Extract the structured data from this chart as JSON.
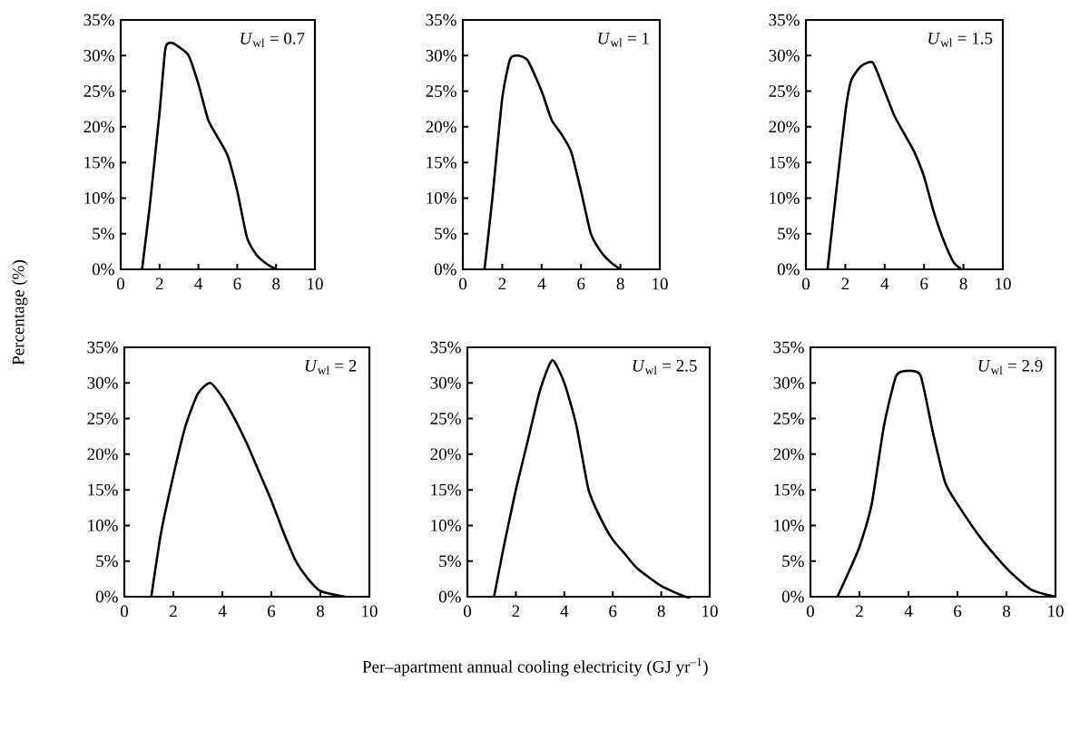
{
  "chart_data": [
    {
      "type": "line",
      "color": "#000000",
      "marker": "none",
      "line_style": "solid",
      "xlim": [
        0,
        10
      ],
      "ylim": [
        0,
        35
      ],
      "xticks": [
        0,
        2,
        4,
        6,
        8,
        10
      ],
      "yticks": [
        {
          "value": 0,
          "label": "0%"
        },
        {
          "value": 5,
          "label": "5%"
        },
        {
          "value": 10,
          "label": "10%"
        },
        {
          "value": 15,
          "label": "15%"
        },
        {
          "value": 20,
          "label": "20%"
        },
        {
          "value": 25,
          "label": "25%"
        },
        {
          "value": 30,
          "label": "30%"
        },
        {
          "value": 35,
          "label": "35%"
        }
      ],
      "annotations": [
        "*U*$_{wl}$ = 0.7"
      ],
      "x": [
        1.1,
        1.5,
        2,
        2.3,
        2.6,
        3,
        3.5,
        4,
        4.5,
        5,
        5.5,
        6,
        6.5,
        7,
        7.5,
        8
      ],
      "values": [
        0,
        9,
        22,
        31,
        31.8,
        31.2,
        30,
        26,
        21,
        18.5,
        16,
        11,
        4.5,
        2,
        0.8,
        0
      ]
    },
    {
      "type": "line",
      "color": "#000000",
      "marker": "none",
      "line_style": "solid",
      "xlim": [
        0,
        10
      ],
      "ylim": [
        0,
        35
      ],
      "xticks": [
        0,
        2,
        4,
        6,
        8,
        10
      ],
      "yticks": [
        {
          "value": 0,
          "label": "0%"
        },
        {
          "value": 5,
          "label": "5%"
        },
        {
          "value": 10,
          "label": "10%"
        },
        {
          "value": 15,
          "label": "15%"
        },
        {
          "value": 20,
          "label": "20%"
        },
        {
          "value": 25,
          "label": "25%"
        },
        {
          "value": 30,
          "label": "30%"
        },
        {
          "value": 35,
          "label": "35%"
        }
      ],
      "annotations": [
        "*U*$_{wl}$ = 1"
      ],
      "x": [
        1.1,
        1.5,
        2,
        2.4,
        2.8,
        3.3,
        4,
        4.5,
        5,
        5.5,
        6,
        6.5,
        7,
        7.5,
        8
      ],
      "values": [
        0,
        10,
        24,
        29.5,
        30,
        29.3,
        25,
        21,
        19,
        16.5,
        11,
        5,
        2.5,
        1,
        0
      ]
    },
    {
      "type": "line",
      "color": "#000000",
      "marker": "none",
      "line_style": "solid",
      "xlim": [
        0,
        10
      ],
      "ylim": [
        0,
        35
      ],
      "xticks": [
        0,
        2,
        4,
        6,
        8,
        10
      ],
      "yticks": [
        {
          "value": 0,
          "label": "0%"
        },
        {
          "value": 5,
          "label": "5%"
        },
        {
          "value": 10,
          "label": "10%"
        },
        {
          "value": 15,
          "label": "15%"
        },
        {
          "value": 20,
          "label": "20%"
        },
        {
          "value": 25,
          "label": "25%"
        },
        {
          "value": 30,
          "label": "30%"
        },
        {
          "value": 35,
          "label": "35%"
        }
      ],
      "annotations": [
        "*U*$_{wl}$ = 1.5"
      ],
      "x": [
        1.1,
        1.5,
        2,
        2.3,
        2.8,
        3.4,
        4,
        4.5,
        5,
        5.5,
        6,
        6.5,
        7,
        7.5,
        7.9
      ],
      "values": [
        0,
        10,
        22,
        26.5,
        28.5,
        29,
        25,
        21.5,
        19,
        16.5,
        13,
        8,
        4,
        1,
        0
      ]
    },
    {
      "type": "line",
      "color": "#000000",
      "marker": "none",
      "line_style": "solid",
      "xlim": [
        0,
        10
      ],
      "ylim": [
        0,
        35
      ],
      "xticks": [
        0,
        2,
        4,
        6,
        8,
        10
      ],
      "yticks": [
        {
          "value": 0,
          "label": "0%"
        },
        {
          "value": 5,
          "label": "5%"
        },
        {
          "value": 10,
          "label": "10%"
        },
        {
          "value": 15,
          "label": "15%"
        },
        {
          "value": 20,
          "label": "20%"
        },
        {
          "value": 25,
          "label": "25%"
        },
        {
          "value": 30,
          "label": "30%"
        },
        {
          "value": 35,
          "label": "35%"
        }
      ],
      "annotations": [
        "*U*$_{wl}$ = 2"
      ],
      "ylabel": "Percentage (%)",
      "x": [
        1.1,
        1.5,
        2,
        2.5,
        3,
        3.5,
        4,
        4.5,
        5,
        5.5,
        6,
        6.5,
        7,
        7.5,
        8,
        9
      ],
      "values": [
        0,
        9,
        17,
        24,
        28.5,
        30,
        28,
        25,
        21.5,
        17.5,
        13.5,
        9,
        5,
        2.5,
        0.8,
        0
      ]
    },
    {
      "type": "line",
      "color": "#000000",
      "marker": "none",
      "line_style": "solid",
      "xlim": [
        0,
        10
      ],
      "ylim": [
        0,
        35
      ],
      "xticks": [
        0,
        2,
        4,
        6,
        8,
        10
      ],
      "yticks": [
        {
          "value": 0,
          "label": "0%"
        },
        {
          "value": 5,
          "label": "5%"
        },
        {
          "value": 10,
          "label": "10%"
        },
        {
          "value": 15,
          "label": "15%"
        },
        {
          "value": 20,
          "label": "20%"
        },
        {
          "value": 25,
          "label": "25%"
        },
        {
          "value": 30,
          "label": "30%"
        },
        {
          "value": 35,
          "label": "35%"
        }
      ],
      "annotations": [
        "*U*$_{wl}$ = 2.5"
      ],
      "xlabel": "Per–apartment annual cooling electricity (GJ yr$^{–1}$)",
      "x": [
        1.1,
        1.5,
        2,
        2.5,
        3,
        3.5,
        4,
        4.5,
        5,
        5.5,
        6,
        6.5,
        7,
        8,
        9,
        9.2
      ],
      "values": [
        0,
        7,
        15,
        22,
        29,
        33.2,
        30,
        24,
        15,
        11,
        8,
        6,
        4,
        1.5,
        0,
        0
      ]
    },
    {
      "type": "line",
      "color": "#000000",
      "marker": "none",
      "line_style": "solid",
      "xlim": [
        0,
        10
      ],
      "ylim": [
        0,
        35
      ],
      "xticks": [
        0,
        2,
        4,
        6,
        8,
        10
      ],
      "yticks": [
        {
          "value": 0,
          "label": "0%"
        },
        {
          "value": 5,
          "label": "5%"
        },
        {
          "value": 10,
          "label": "10%"
        },
        {
          "value": 15,
          "label": "15%"
        },
        {
          "value": 20,
          "label": "20%"
        },
        {
          "value": 25,
          "label": "25%"
        },
        {
          "value": 30,
          "label": "30%"
        },
        {
          "value": 35,
          "label": "35%"
        }
      ],
      "annotations": [
        "*U*$_{wl}$ = 2.9"
      ],
      "x": [
        1.1,
        1.5,
        2,
        2.5,
        3,
        3.5,
        4,
        4.5,
        5,
        5.5,
        6,
        7,
        8,
        9,
        10
      ],
      "values": [
        0,
        3,
        7,
        13,
        24,
        31,
        31.7,
        31,
        23,
        16,
        13,
        8,
        4,
        1,
        0
      ]
    }
  ]
}
